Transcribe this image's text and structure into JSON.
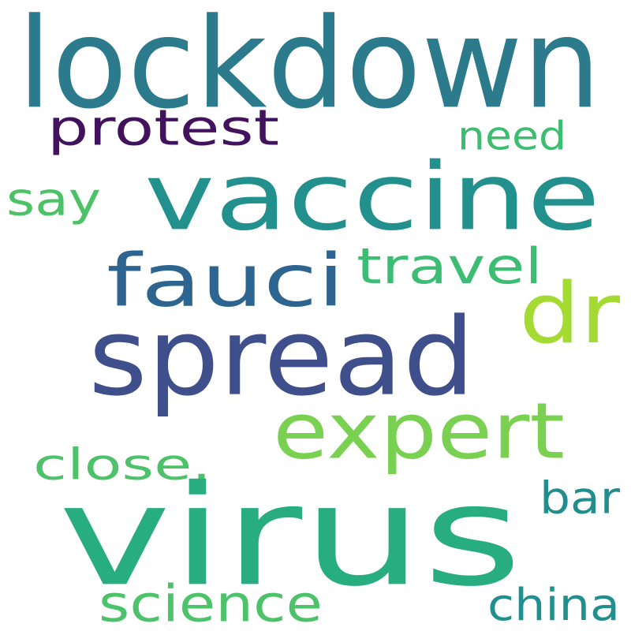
{
  "word_cloud": {
    "background": "#ffffff",
    "words": [
      {
        "id": "lockdown",
        "text": "lockdown",
        "color": "#2c7b8d"
      },
      {
        "id": "protest",
        "text": "protest",
        "color": "#43125d"
      },
      {
        "id": "need",
        "text": "need",
        "color": "#3dbd6f"
      },
      {
        "id": "say",
        "text": "say",
        "color": "#4cc165"
      },
      {
        "id": "vaccine",
        "text": "vaccine",
        "color": "#22908d"
      },
      {
        "id": "fauci",
        "text": "fauci",
        "color": "#2e6590"
      },
      {
        "id": "travel",
        "text": "travel",
        "color": "#3dbc73"
      },
      {
        "id": "dr",
        "text": "dr",
        "color": "#a5da33"
      },
      {
        "id": "spread",
        "text": "spread",
        "color": "#3f4f8b"
      },
      {
        "id": "expert",
        "text": "expert",
        "color": "#7ad151"
      },
      {
        "id": "close",
        "text": "close.",
        "color": "#4ec26a"
      },
      {
        "id": "virus",
        "text": "virus",
        "color": "#27ad80"
      },
      {
        "id": "bar",
        "text": "bar",
        "color": "#218e8d"
      },
      {
        "id": "science",
        "text": "science",
        "color": "#4cc26b"
      },
      {
        "id": "china",
        "text": "china",
        "color": "#218f8d"
      }
    ]
  }
}
